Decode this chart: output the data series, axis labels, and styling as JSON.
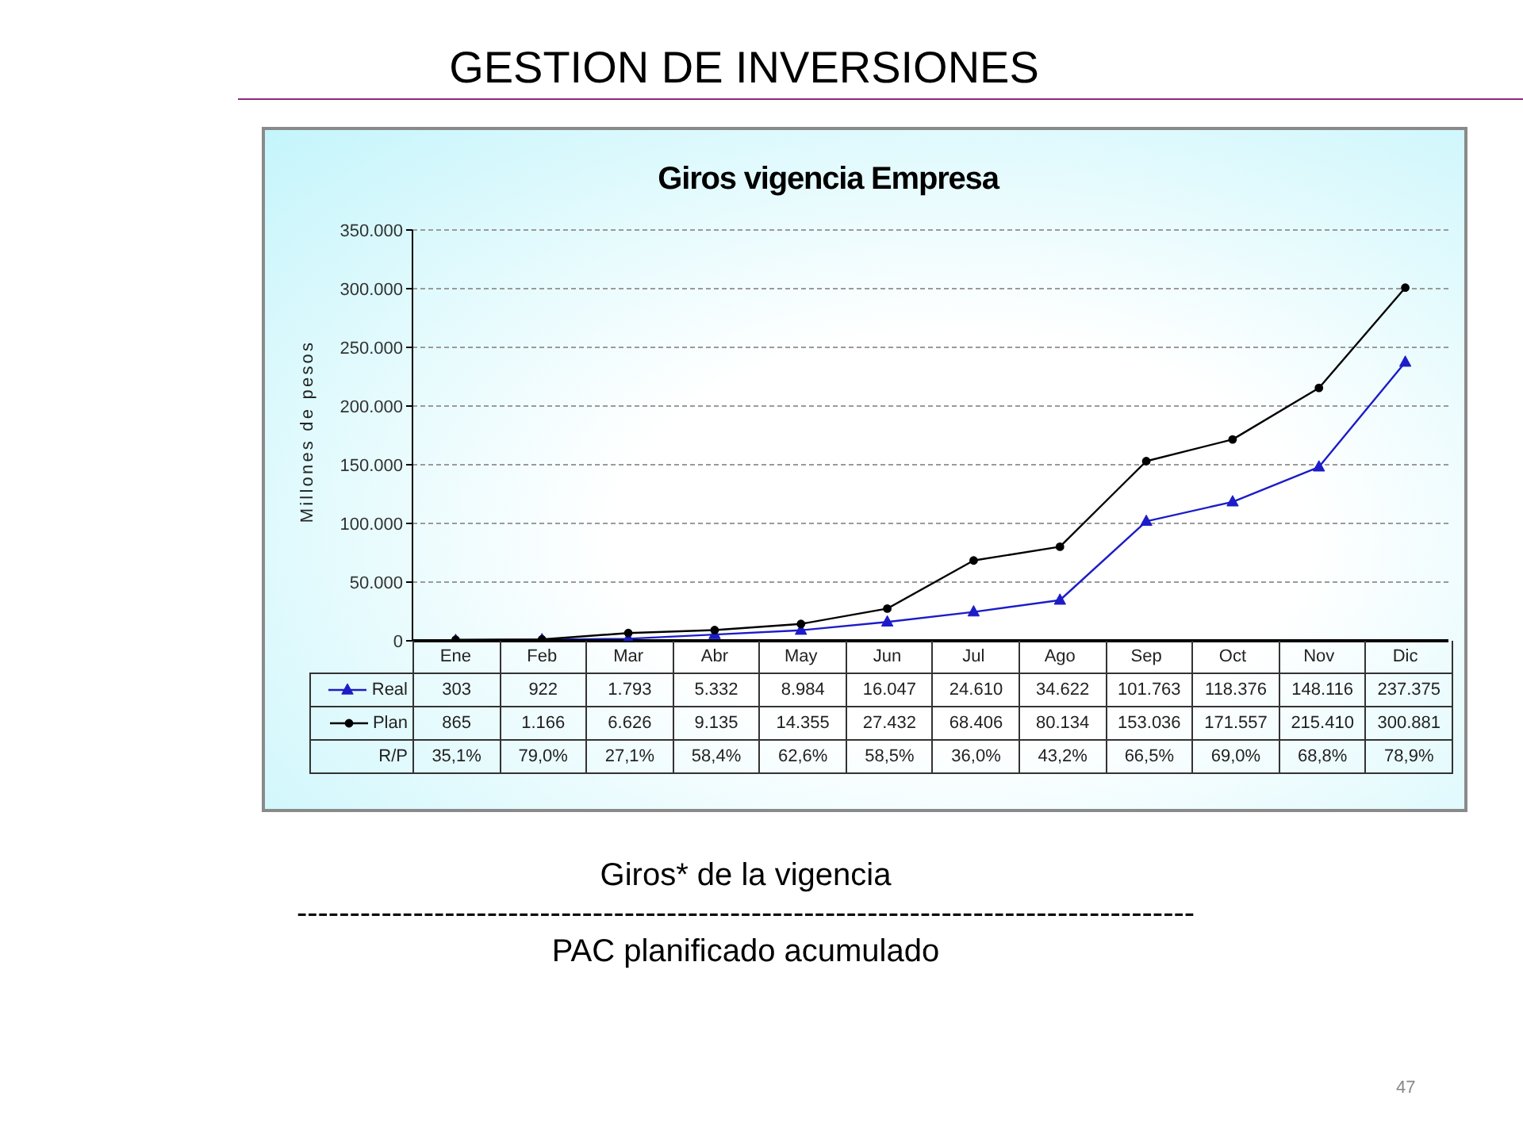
{
  "chart_data": {
    "type": "line",
    "title": "GESTION DE INVERSIONES",
    "subtitle": "Giros vigencia Empresa",
    "ylabel": "Millones de pesos",
    "categories": [
      "Ene",
      "Feb",
      "Mar",
      "Abr",
      "May",
      "Jun",
      "Jul",
      "Ago",
      "Sep",
      "Oct",
      "Nov",
      "Dic"
    ],
    "series": [
      {
        "name": "Real",
        "color": "#1c1cc8",
        "marker": "triangle",
        "values": [
          303,
          922,
          1793,
          5332,
          8984,
          16047,
          24610,
          34622,
          101763,
          118376,
          148116,
          237375
        ],
        "value_labels": [
          "303",
          "922",
          "1.793",
          "5.332",
          "8.984",
          "16.047",
          "24.610",
          "34.622",
          "101.763",
          "118.376",
          "148.116",
          "237.375"
        ]
      },
      {
        "name": "Plan",
        "color": "#000000",
        "marker": "circle",
        "values": [
          865,
          1166,
          6626,
          9135,
          14355,
          27432,
          68406,
          80134,
          153036,
          171557,
          215410,
          300881
        ],
        "value_labels": [
          "865",
          "1.166",
          "6.626",
          "9.135",
          "14.355",
          "27.432",
          "68.406",
          "80.134",
          "153.036",
          "171.557",
          "215.410",
          "300.881"
        ]
      }
    ],
    "ylim": [
      0,
      350000
    ],
    "yticks": [
      0,
      {
        "value": 50000,
        "label": "50.000"
      },
      {
        "value": 100000,
        "label": "100.000"
      },
      {
        "value": 150000,
        "label": "150.000"
      },
      {
        "value": 200000,
        "label": "200.000"
      },
      {
        "value": 250000,
        "label": "250.000"
      },
      {
        "value": 300000,
        "label": "300.000"
      },
      {
        "value": 350000,
        "label": "350.000"
      }
    ],
    "grid": "y",
    "legend": "bottom left",
    "annotations": [
      "R/P",
      "35,1%",
      "79,0%",
      "27,1%",
      "58,4%",
      "62,6%",
      "58,5%",
      "36,0%",
      "43,2%",
      "66,5%",
      "69,0%",
      "68,8%",
      "78,9%",
      "Giros* de la vigencia",
      "-------------------------------------------------------------------------------------",
      "PAC planificado acumulado",
      "47"
    ]
  }
}
